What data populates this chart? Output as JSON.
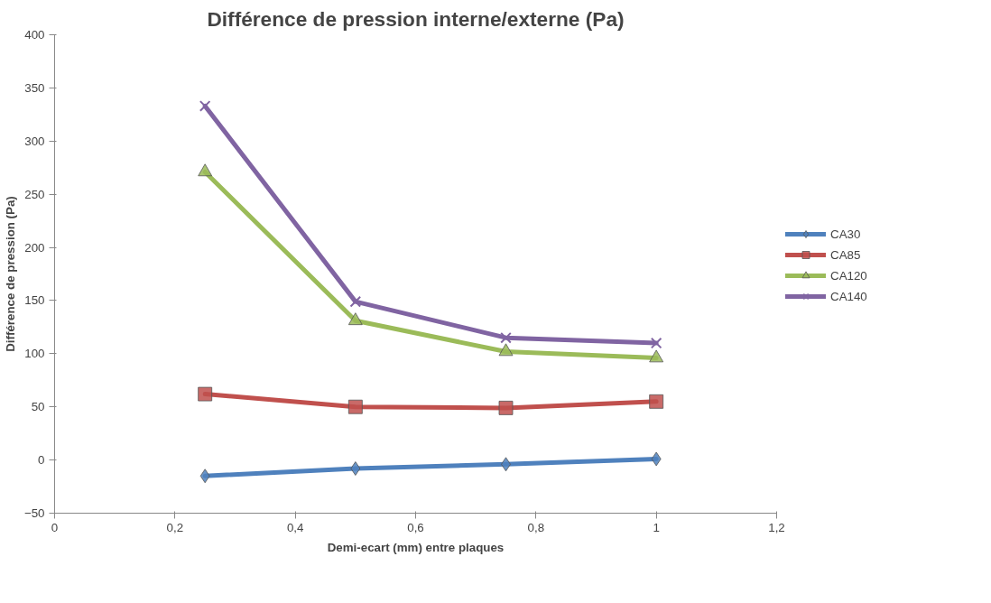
{
  "chart_data": {
    "type": "line",
    "title": "Différence de pression interne/externe (Pa)",
    "xlabel": "Demi-ecart (mm) entre plaques",
    "ylabel": "Différence de pression (Pa)",
    "x": [
      0.25,
      0.5,
      0.75,
      1
    ],
    "series": [
      {
        "name": "CA30",
        "color": "#4f81bd",
        "marker": "diamond",
        "values": [
          -15,
          -8,
          -4,
          1
        ]
      },
      {
        "name": "CA85",
        "color": "#c0504d",
        "marker": "square",
        "values": [
          62,
          50,
          49,
          55
        ]
      },
      {
        "name": "CA120",
        "color": "#9bbb59",
        "marker": "triangle",
        "values": [
          271,
          131,
          102,
          96
        ]
      },
      {
        "name": "CA140",
        "color": "#8064a2",
        "marker": "cross",
        "values": [
          333,
          149,
          115,
          110
        ]
      }
    ],
    "xlim": [
      0,
      1.2
    ],
    "xticks": [
      0,
      {
        "value": 0.2,
        "label": "0,2"
      },
      {
        "value": 0.4,
        "label": "0,4"
      },
      {
        "value": 0.6,
        "label": "0,6"
      },
      {
        "value": 0.8,
        "label": "0,8"
      },
      1,
      {
        "value": 1.2,
        "label": "1,2"
      }
    ],
    "ylim": [
      -50,
      400
    ],
    "yticks": [
      -50,
      0,
      50,
      100,
      150,
      200,
      250,
      300,
      350,
      400
    ],
    "grid": false,
    "legend": "right",
    "line_style": "solid"
  }
}
